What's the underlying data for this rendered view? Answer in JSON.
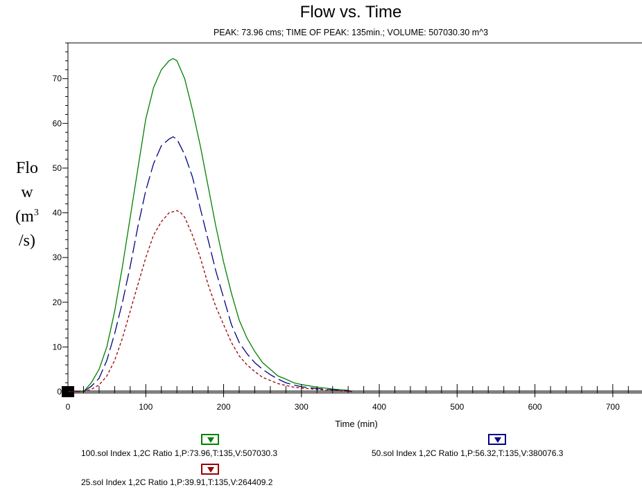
{
  "chart_data": {
    "type": "line",
    "title": "Flow vs. Time",
    "subtitle": "PEAK: 73.96 cms;  TIME OF PEAK: 135min.;  VOLUME: 507030.30 m^3",
    "xlabel": "Time (min)",
    "ylabel": {
      "pre": "Flo",
      "mid": "w",
      "unit": "(m",
      "sup": "3",
      "tail": "/s)"
    },
    "xlim": [
      0,
      750
    ],
    "ylim": [
      0,
      78
    ],
    "x_ticks": [
      0,
      100,
      200,
      300,
      400,
      500,
      600,
      700
    ],
    "y_ticks": [
      0,
      10,
      20,
      30,
      40,
      50,
      60,
      70
    ],
    "grid": false,
    "legend_placement": "bottom",
    "series": [
      {
        "name": "100.sol Index 1,2C Ratio 1,P:73.96,T:135,V:507030.3",
        "color": "#008000",
        "dash": "solid",
        "x": [
          0,
          20,
          30,
          40,
          50,
          60,
          70,
          80,
          90,
          100,
          110,
          120,
          130,
          135,
          140,
          150,
          160,
          170,
          180,
          190,
          200,
          210,
          220,
          230,
          240,
          250,
          260,
          270,
          280,
          290,
          300,
          320,
          340,
          360,
          365
        ],
        "y": [
          0,
          0,
          2,
          5,
          10,
          18,
          28,
          39,
          50,
          61,
          68,
          72,
          74,
          74.5,
          74,
          70,
          63,
          55,
          46,
          37,
          29,
          22,
          16,
          12,
          9,
          6.5,
          5,
          3.5,
          2.8,
          2,
          1.6,
          1,
          0.6,
          0.3,
          0
        ]
      },
      {
        "name": "50.sol Index 1,2C Ratio 1,P:56.32,T:135,V:380076.3",
        "color": "#000080",
        "dash": "long-dash",
        "x": [
          0,
          20,
          30,
          40,
          50,
          60,
          70,
          80,
          90,
          100,
          110,
          120,
          130,
          135,
          140,
          150,
          160,
          170,
          180,
          190,
          200,
          210,
          220,
          230,
          240,
          250,
          260,
          270,
          280,
          290,
          300,
          320,
          340,
          360,
          365
        ],
        "y": [
          0,
          0,
          1.2,
          3,
          7,
          13,
          20,
          28,
          37,
          45,
          51,
          55,
          56.5,
          57,
          56.5,
          53,
          48,
          41,
          34,
          27,
          21,
          15,
          11,
          8.5,
          6.5,
          5,
          3.8,
          2.8,
          2,
          1.5,
          1.1,
          0.7,
          0.4,
          0.2,
          0
        ]
      },
      {
        "name": "25.sol Index 1,2C Ratio 1,P:39.91,T:135,V:264409.2",
        "color": "#990000",
        "dash": "short-dash",
        "x": [
          0,
          20,
          30,
          40,
          50,
          60,
          70,
          80,
          90,
          100,
          110,
          120,
          130,
          140,
          145,
          150,
          160,
          170,
          180,
          190,
          200,
          210,
          220,
          230,
          240,
          250,
          260,
          270,
          280,
          290,
          300,
          320,
          340,
          360,
          365
        ],
        "y": [
          0,
          0,
          0.5,
          1.5,
          3.5,
          7,
          12,
          18,
          24,
          30,
          35,
          38,
          40,
          40.5,
          40,
          39,
          35,
          30,
          24,
          19,
          15,
          11,
          8,
          6,
          4.5,
          3.2,
          2.5,
          1.8,
          1.4,
          1,
          0.8,
          0.5,
          0.3,
          0.1,
          0
        ]
      }
    ]
  }
}
